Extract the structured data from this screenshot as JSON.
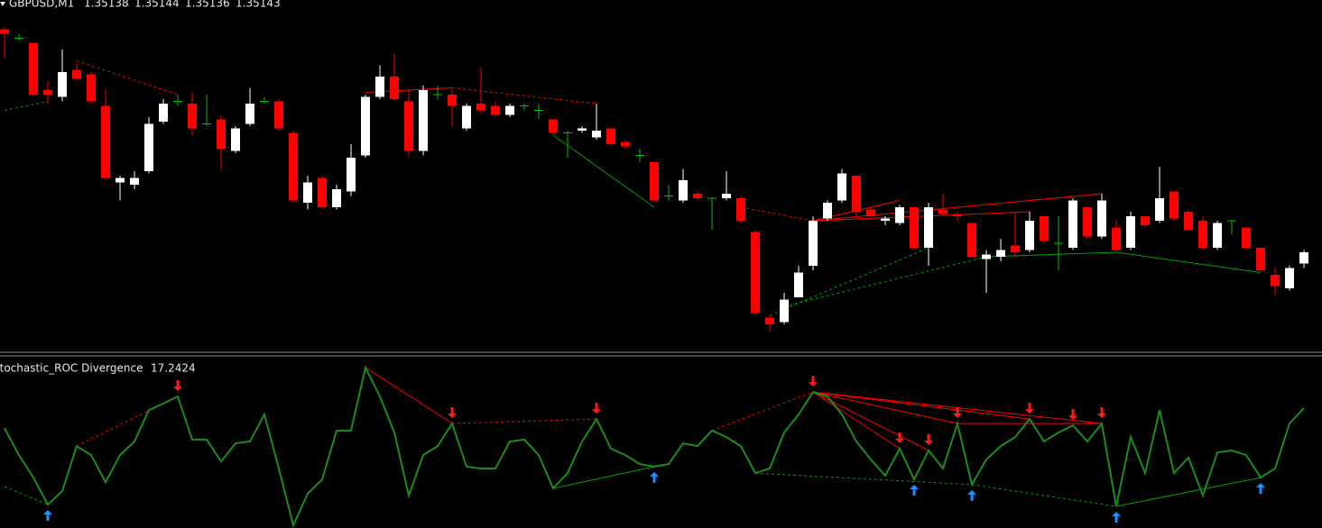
{
  "chart_data": [
    {
      "type": "candlestick",
      "title": "GBPUSD,M1",
      "categories": [
        null,
        null,
        null,
        null,
        null,
        null,
        null,
        null,
        null,
        null,
        null,
        null,
        null,
        null,
        null,
        null,
        null,
        null,
        null,
        null,
        null,
        null,
        null,
        null,
        null,
        null,
        null,
        null,
        null,
        null,
        null,
        null,
        null,
        null,
        null,
        null,
        null,
        null,
        null,
        null,
        null,
        null,
        null,
        null,
        null,
        null,
        null,
        null,
        null,
        null,
        null,
        null,
        null,
        null,
        null,
        null,
        null,
        null,
        null,
        null,
        null,
        null,
        null,
        null,
        null,
        null,
        null,
        null,
        null,
        null,
        null,
        null,
        null,
        null,
        null,
        null,
        null,
        null,
        null,
        null,
        null,
        null,
        null,
        null,
        null,
        null,
        null,
        null,
        null,
        null,
        null
      ],
      "open": [
        1.35242,
        1.35238,
        1.35236,
        1.35215,
        1.35212,
        1.35224,
        1.35222,
        1.35208,
        1.35174,
        1.35173,
        1.35179,
        1.35201,
        1.3521,
        1.35209,
        1.352,
        1.35202,
        1.35188,
        1.352,
        1.3521,
        1.3521,
        1.35196,
        1.35165,
        1.35176,
        1.35163,
        1.3517,
        1.35186,
        1.35212,
        1.35221,
        1.3521,
        1.35188,
        1.35213,
        1.35213,
        1.35198,
        1.35209,
        1.35208,
        1.35204,
        1.35208,
        1.35206,
        1.35202,
        1.35196,
        1.35197,
        1.35194,
        1.35198,
        1.35192,
        1.35186,
        1.35183,
        1.35168,
        1.35166,
        1.35169,
        1.35167,
        1.35167,
        1.35167,
        1.35152,
        1.35114,
        1.35112,
        1.35123,
        1.35137,
        1.35158,
        1.35166,
        1.35177,
        1.35162,
        1.35157,
        1.35156,
        1.35163,
        1.35145,
        1.35162,
        1.3516,
        1.35156,
        1.3514,
        1.35141,
        1.35146,
        1.35144,
        1.35159,
        1.35147,
        1.35145,
        1.35163,
        1.3515,
        1.35154,
        1.35145,
        1.35159,
        1.35157,
        1.3517,
        1.35161,
        1.35157,
        1.35145,
        1.35157,
        1.35154,
        1.35145,
        1.35133,
        1.35127,
        1.35138
      ],
      "high": [
        1.35243,
        1.3524,
        1.35236,
        1.35219,
        1.35233,
        1.35227,
        1.35223,
        1.35215,
        1.35177,
        1.35179,
        1.35203,
        1.35211,
        1.35213,
        1.35214,
        1.35213,
        1.35204,
        1.35199,
        1.35216,
        1.35212,
        1.35211,
        1.35197,
        1.35177,
        1.35177,
        1.35173,
        1.35191,
        1.35213,
        1.35226,
        1.35231,
        1.35215,
        1.35217,
        1.35217,
        1.35215,
        1.35209,
        1.35225,
        1.3521,
        1.35209,
        1.35209,
        1.35209,
        1.35202,
        1.35197,
        1.35199,
        1.35209,
        1.35198,
        1.35193,
        1.35189,
        1.35183,
        1.35173,
        1.3518,
        1.3517,
        1.35167,
        1.35179,
        1.35168,
        1.35153,
        1.35115,
        1.35125,
        1.35137,
        1.35159,
        1.35166,
        1.3518,
        1.35177,
        1.35163,
        1.35159,
        1.35164,
        1.35163,
        1.35165,
        1.35169,
        1.35161,
        1.35156,
        1.35144,
        1.35149,
        1.35161,
        1.35161,
        1.35159,
        1.35159,
        1.35167,
        1.35163,
        1.35169,
        1.35157,
        1.35161,
        1.35159,
        1.35181,
        1.3517,
        1.35162,
        1.35159,
        1.35157,
        1.35157,
        1.35154,
        1.35145,
        1.35136,
        1.35137,
        1.35144
      ],
      "low": [
        1.35229,
        1.35237,
        1.35213,
        1.35209,
        1.3521,
        1.35219,
        1.35209,
        1.35175,
        1.35166,
        1.35171,
        1.35178,
        1.352,
        1.35208,
        1.35195,
        1.35199,
        1.3518,
        1.35187,
        1.35199,
        1.35209,
        1.35197,
        1.35165,
        1.35162,
        1.35162,
        1.35162,
        1.35168,
        1.35185,
        1.35211,
        1.3521,
        1.35186,
        1.35186,
        1.35211,
        1.35199,
        1.35197,
        1.35205,
        1.35203,
        1.35203,
        1.35206,
        1.35202,
        1.35195,
        1.35185,
        1.35196,
        1.35193,
        1.3519,
        1.35189,
        1.35183,
        1.35165,
        1.35166,
        1.35165,
        1.35166,
        1.35153,
        1.35166,
        1.35156,
        1.35115,
        1.35108,
        1.35111,
        1.35123,
        1.35135,
        1.35157,
        1.35165,
        1.35159,
        1.35158,
        1.35155,
        1.35155,
        1.35144,
        1.35137,
        1.35159,
        1.35157,
        1.35141,
        1.35125,
        1.35139,
        1.35141,
        1.35143,
        1.35147,
        1.35135,
        1.35144,
        1.35149,
        1.35149,
        1.35143,
        1.35144,
        1.35154,
        1.35156,
        1.35157,
        1.35153,
        1.35144,
        1.35144,
        1.35151,
        1.35144,
        1.35134,
        1.35124,
        1.35126,
        1.35136
      ],
      "close": [
        1.3524,
        1.35238,
        1.35213,
        1.35213,
        1.35223,
        1.3522,
        1.3521,
        1.35176,
        1.35176,
        1.35176,
        1.352,
        1.35209,
        1.3521,
        1.35198,
        1.352,
        1.35189,
        1.35198,
        1.35209,
        1.3521,
        1.35198,
        1.35166,
        1.35174,
        1.35163,
        1.35171,
        1.35185,
        1.35212,
        1.35221,
        1.35211,
        1.35188,
        1.35215,
        1.35213,
        1.35208,
        1.35208,
        1.35206,
        1.35204,
        1.35208,
        1.35208,
        1.35206,
        1.35196,
        1.35196,
        1.35198,
        1.35197,
        1.35191,
        1.3519,
        1.35186,
        1.35166,
        1.35168,
        1.35175,
        1.35167,
        1.35167,
        1.35169,
        1.35157,
        1.35116,
        1.35111,
        1.35122,
        1.35134,
        1.35157,
        1.35165,
        1.35178,
        1.35161,
        1.35159,
        1.35158,
        1.35163,
        1.35145,
        1.35163,
        1.3516,
        1.35159,
        1.35141,
        1.35142,
        1.35144,
        1.35143,
        1.35157,
        1.35148,
        1.35147,
        1.35166,
        1.3515,
        1.35166,
        1.35144,
        1.35159,
        1.35155,
        1.35167,
        1.35158,
        1.35153,
        1.35145,
        1.35156,
        1.35157,
        1.35145,
        1.35135,
        1.35128,
        1.35136,
        1.35143
      ],
      "ylim": [
        1.35099,
        1.35255
      ],
      "up_color": "#ffffff",
      "down_color": "#ff0000",
      "doji_color": "#00c000",
      "lines": [
        {
          "x": [
            5,
            12
          ],
          "y": [
            1.35228,
            1.35213
          ],
          "color": "#ff0000",
          "dashed": true
        },
        {
          "x": [
            0,
            3
          ],
          "y": [
            1.35206,
            1.3521
          ],
          "color": "#00a000",
          "dashed": true
        },
        {
          "x": [
            25,
            31
          ],
          "y": [
            1.35214,
            1.35216
          ],
          "color": "#ff0000",
          "dashed": false
        },
        {
          "x": [
            31,
            41
          ],
          "y": [
            1.35216,
            1.35209
          ],
          "color": "#ff0000",
          "dashed": true
        },
        {
          "x": [
            38,
            45
          ],
          "y": [
            1.35195,
            1.35163
          ],
          "color": "#00a000",
          "dashed": false
        },
        {
          "x": [
            51,
            56
          ],
          "y": [
            1.35163,
            1.35157
          ],
          "color": "#ff0000",
          "dashed": true
        },
        {
          "x": [
            56,
            62
          ],
          "y": [
            1.35157,
            1.35166
          ],
          "color": "#ff0000",
          "dashed": false
        },
        {
          "x": [
            56,
            71
          ],
          "y": [
            1.35157,
            1.35161
          ],
          "color": "#ff0000",
          "dashed": false
        },
        {
          "x": [
            56,
            76
          ],
          "y": [
            1.35157,
            1.35169
          ],
          "color": "#ff0000",
          "dashed": false
        },
        {
          "x": [
            53,
            64
          ],
          "y": [
            1.35115,
            1.35145
          ],
          "color": "#00a000",
          "dashed": true
        },
        {
          "x": [
            54,
            68
          ],
          "y": [
            1.35119,
            1.35141
          ],
          "color": "#00a000",
          "dashed": true
        },
        {
          "x": [
            68,
            77
          ],
          "y": [
            1.35141,
            1.35143
          ],
          "color": "#00a000",
          "dashed": false
        },
        {
          "x": [
            77,
            87
          ],
          "y": [
            1.35143,
            1.35134
          ],
          "color": "#00a000",
          "dashed": false
        }
      ]
    },
    {
      "type": "line",
      "title": "Stochastic_ROC Divergence",
      "series": [
        {
          "color": "#1c8c1c",
          "values": [
            7.7,
            -5.2,
            -15.9,
            -28.8,
            -22.4,
            -0.9,
            -5.2,
            -18.1,
            -5.2,
            1.3,
            16.3,
            19.4,
            22.8,
            2.2,
            2.2,
            -8.2,
            0.4,
            1.3,
            14.2,
            -11.6,
            -38.7,
            -23.6,
            -16.8,
            6.5,
            6.5,
            36.6,
            22.8,
            5.6,
            -24.5,
            -5.2,
            -0.9,
            9.9,
            -10.7,
            -11.6,
            -11.6,
            1.3,
            2.2,
            -5.2,
            -21.1,
            -13.8,
            1.3,
            12.0,
            -2.1,
            -5.2,
            -9.5,
            -10.7,
            -9.5,
            0.4,
            -0.9,
            6.5,
            3.4,
            -0.9,
            -13.8,
            -11.6,
            5.6,
            14.2,
            24.9,
            22.8,
            14.2,
            1.3,
            -7.3,
            -15.0,
            -2.1,
            -16.8,
            -3.0,
            -11.6,
            9.9,
            -19.3,
            -7.3,
            -0.9,
            3.4,
            12.0,
            1.3,
            5.6,
            9.0,
            1.3,
            9.9,
            -29.7,
            3.4,
            -13.8,
            16.3,
            -13.8,
            -6.4,
            -24.5,
            -3.9,
            -3.0,
            -5.2,
            -15.9,
            -11.6,
            9.9,
            17.2424
          ]
        }
      ],
      "ylim": [
        -40,
        40
      ],
      "sell_signals": [
        12,
        31,
        41,
        56,
        62,
        64,
        66,
        71,
        74,
        76
      ],
      "sell_color": "#ff1a1a",
      "buy_signals": [
        3,
        45,
        63,
        67,
        77,
        87
      ],
      "buy_color": "#1e90ff",
      "lines": [
        {
          "x": [
            5,
            12
          ],
          "y": [
            -0.9,
            22.8
          ],
          "color": "#ff0000",
          "dashed": true
        },
        {
          "x": [
            0,
            3
          ],
          "y": [
            -20.2,
            -28.8
          ],
          "color": "#00a000",
          "dashed": true
        },
        {
          "x": [
            25,
            31
          ],
          "y": [
            36.6,
            9.9
          ],
          "color": "#ff0000",
          "dashed": false
        },
        {
          "x": [
            31,
            41
          ],
          "y": [
            9.9,
            12.0
          ],
          "color": "#ff0000",
          "dashed": true
        },
        {
          "x": [
            38,
            45
          ],
          "y": [
            -21.1,
            -10.7
          ],
          "color": "#00a000",
          "dashed": false
        },
        {
          "x": [
            49,
            56
          ],
          "y": [
            6.5,
            24.9
          ],
          "color": "#ff0000",
          "dashed": true
        },
        {
          "x": [
            56,
            62
          ],
          "y": [
            24.9,
            -2.1
          ],
          "color": "#ff0000",
          "dashed": false
        },
        {
          "x": [
            56,
            64
          ],
          "y": [
            24.9,
            -3.0
          ],
          "color": "#ff0000",
          "dashed": false
        },
        {
          "x": [
            56,
            66
          ],
          "y": [
            24.9,
            9.9
          ],
          "color": "#ff0000",
          "dashed": false
        },
        {
          "x": [
            56,
            71
          ],
          "y": [
            24.9,
            12.0
          ],
          "color": "#ff0000",
          "dashed": false
        },
        {
          "x": [
            56,
            76
          ],
          "y": [
            24.9,
            9.9
          ],
          "color": "#ff0000",
          "dashed": false
        },
        {
          "x": [
            66,
            76
          ],
          "y": [
            9.9,
            9.9
          ],
          "color": "#ff0000",
          "dashed": false
        },
        {
          "x": [
            52,
            67
          ],
          "y": [
            -13.8,
            -19.3
          ],
          "color": "#00a000",
          "dashed": true
        },
        {
          "x": [
            67,
            77
          ],
          "y": [
            -19.3,
            -29.7
          ],
          "color": "#00a000",
          "dashed": true
        },
        {
          "x": [
            77,
            87
          ],
          "y": [
            -29.7,
            -15.9
          ],
          "color": "#00a000",
          "dashed": false
        }
      ]
    }
  ]
}
